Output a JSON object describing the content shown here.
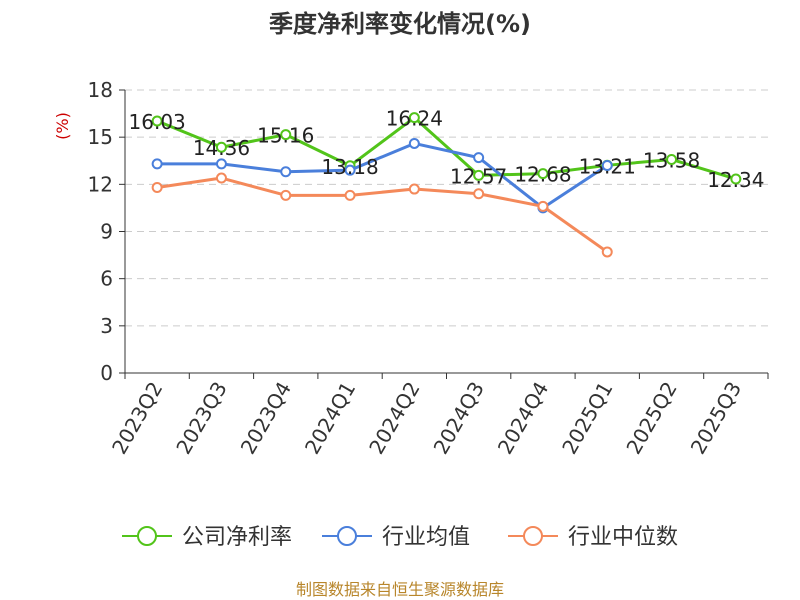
{
  "chart_data": {
    "type": "line",
    "title": "季度净利率变化情况(%)",
    "ylabel": "(%)",
    "ylim": [
      0,
      18
    ],
    "yticks": [
      0,
      3,
      6,
      9,
      12,
      15,
      18
    ],
    "grid": true,
    "legend_position": "bottom",
    "categories": [
      "2023Q2",
      "2023Q3",
      "2023Q4",
      "2024Q1",
      "2024Q2",
      "2024Q3",
      "2024Q4",
      "2025Q1",
      "2025Q2",
      "2025Q3"
    ],
    "series": [
      {
        "name": "公司净利率",
        "color": "#52c41a",
        "values": [
          16.03,
          14.36,
          15.16,
          13.18,
          16.24,
          12.57,
          12.68,
          13.21,
          13.58,
          12.34
        ],
        "labels": [
          "16.03",
          "14.36",
          "15.16",
          "13.18",
          "16.24",
          "12.57",
          "12.68",
          "13.21",
          "13.58",
          "12.34"
        ]
      },
      {
        "name": "行业均值",
        "color": "#4a7fdb",
        "values": [
          13.3,
          13.3,
          12.8,
          12.9,
          14.6,
          13.7,
          10.5,
          13.2,
          null,
          null
        ]
      },
      {
        "name": "行业中位数",
        "color": "#f4895a",
        "values": [
          11.8,
          12.4,
          11.3,
          11.3,
          11.7,
          11.4,
          10.6,
          7.7,
          null,
          null
        ]
      }
    ]
  },
  "source": "制图数据来自恒生聚源数据库"
}
